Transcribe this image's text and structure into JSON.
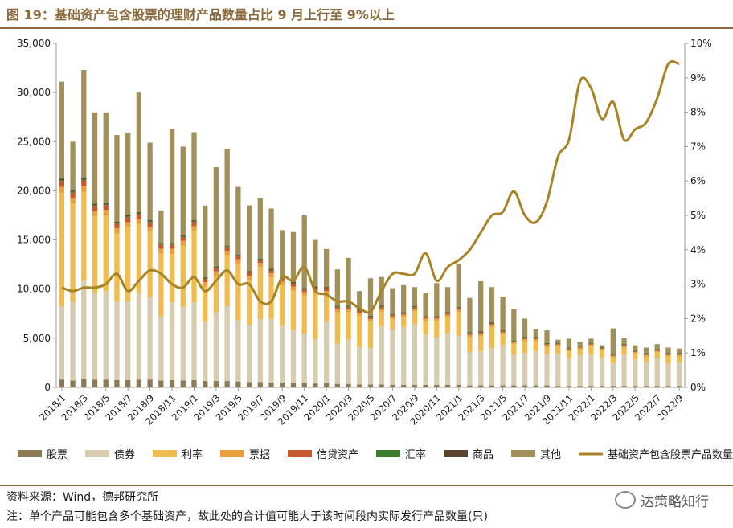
{
  "figure_title": "图 19：基础资产包含股票的理财产品数量占比 9 月上行至 9%以上",
  "source_note": "资料来源：Wind，德邦研究所",
  "footnote": "注：单个产品可能包含多个基础资产，故此处的合计值可能大于该时间段内实际发行产品数量(只)",
  "watermark": "达策略知行",
  "colors": {
    "股票": "#8c7a55",
    "债券": "#d6ccb0",
    "利率": "#f0bc4e",
    "票据": "#e89f3c",
    "信贷资产": "#c8592e",
    "汇率": "#3b7d2a",
    "商品": "#5a4630",
    "其他": "#a0915a",
    "line": "#a88427",
    "title": "#8b6a3c"
  },
  "chart_data": {
    "type": "bar",
    "stacked": true,
    "categories": [
      "2018/1",
      "2018/2",
      "2018/3",
      "2018/4",
      "2018/5",
      "2018/6",
      "2018/7",
      "2018/8",
      "2018/9",
      "2018/10",
      "2018/11",
      "2018/12",
      "2019/1",
      "2019/2",
      "2019/3",
      "2019/4",
      "2019/5",
      "2019/6",
      "2019/7",
      "2019/8",
      "2019/9",
      "2019/10",
      "2019/11",
      "2019/12",
      "2020/1",
      "2020/2",
      "2020/3",
      "2020/4",
      "2020/5",
      "2020/6",
      "2020/7",
      "2020/8",
      "2020/9",
      "2020/10",
      "2020/11",
      "2020/12",
      "2021/1",
      "2021/2",
      "2021/3",
      "2021/4",
      "2021/5",
      "2021/6",
      "2021/7",
      "2021/8",
      "2021/9",
      "2021/10",
      "2021/11",
      "2021/12",
      "2022/1",
      "2022/2",
      "2022/3",
      "2022/4",
      "2022/5",
      "2022/6",
      "2022/7",
      "2022/8",
      "2022/9"
    ],
    "x_tick_labels": [
      "2018/1",
      "2018/3",
      "2018/5",
      "2018/7",
      "2018/9",
      "2018/11",
      "2019/1",
      "2019/3",
      "2019/5",
      "2019/7",
      "2019/9",
      "2019/11",
      "2020/1",
      "2020/3",
      "2020/5",
      "2020/7",
      "2020/9",
      "2020/11",
      "2021/1",
      "2021/3",
      "2021/5",
      "2021/7",
      "2021/9",
      "2021/11",
      "2022/1",
      "2022/3",
      "2022/5",
      "2022/7",
      "2022/9"
    ],
    "series": [
      {
        "name": "股票",
        "values": [
          800,
          700,
          850,
          800,
          800,
          750,
          750,
          800,
          800,
          700,
          750,
          700,
          750,
          650,
          650,
          650,
          600,
          550,
          550,
          500,
          500,
          450,
          450,
          400,
          450,
          350,
          350,
          300,
          300,
          300,
          250,
          250,
          250,
          250,
          250,
          250,
          250,
          200,
          200,
          200,
          200,
          200,
          200,
          200,
          200,
          150,
          150,
          150,
          150,
          150,
          150,
          150,
          150,
          150,
          150,
          150,
          150
        ]
      },
      {
        "name": "债券",
        "values": [
          7500,
          8000,
          10000,
          8800,
          9000,
          8000,
          8000,
          8800,
          8400,
          6500,
          7900,
          7500,
          7900,
          6000,
          7000,
          7600,
          6200,
          5800,
          6400,
          6500,
          5800,
          5400,
          5000,
          4500,
          6200,
          4100,
          4500,
          3800,
          3700,
          5900,
          5600,
          5900,
          6200,
          5100,
          4800,
          5300,
          5000,
          3400,
          3500,
          3800,
          4100,
          3100,
          3300,
          3500,
          3200,
          3300,
          2800,
          3100,
          3200,
          2900,
          2300,
          3200,
          2700,
          2400,
          2800,
          2300,
          2400
        ]
      },
      {
        "name": "利率",
        "values": [
          11500,
          10000,
          9000,
          7800,
          7700,
          6900,
          7500,
          7000,
          6600,
          6400,
          4900,
          6200,
          7200,
          3600,
          3700,
          5200,
          5800,
          4600,
          5300,
          4200,
          4100,
          4000,
          3900,
          4600,
          2800,
          3200,
          2800,
          3200,
          2700,
          1500,
          1100,
          1000,
          1300,
          1400,
          1700,
          1600,
          2400,
          1500,
          1500,
          2100,
          1100,
          1100,
          1200,
          1000,
          700,
          700,
          700,
          600,
          800,
          700,
          600,
          700,
          600,
          600,
          600,
          700,
          600
        ]
      },
      {
        "name": "票据",
        "values": [
          600,
          600,
          600,
          550,
          550,
          550,
          550,
          550,
          550,
          500,
          550,
          500,
          550,
          450,
          450,
          450,
          450,
          400,
          400,
          400,
          400,
          400,
          350,
          350,
          350,
          300,
          300,
          300,
          250,
          250,
          250,
          250,
          250,
          250,
          250,
          250,
          250,
          250,
          250,
          250,
          200,
          200,
          200,
          200,
          200,
          200,
          200,
          200,
          200,
          150,
          150,
          150,
          150,
          150,
          150,
          150,
          150
        ]
      },
      {
        "name": "信贷资产",
        "values": [
          600,
          500,
          600,
          500,
          500,
          450,
          500,
          450,
          450,
          400,
          400,
          400,
          450,
          350,
          350,
          350,
          300,
          300,
          300,
          300,
          300,
          300,
          250,
          250,
          250,
          200,
          200,
          200,
          200,
          200,
          150,
          150,
          150,
          150,
          150,
          150,
          150,
          150,
          150,
          150,
          100,
          100,
          100,
          100,
          100,
          100,
          100,
          100,
          100,
          100,
          100,
          100,
          100,
          100,
          100,
          100,
          100
        ]
      },
      {
        "name": "汇率",
        "values": [
          100,
          100,
          100,
          100,
          100,
          100,
          100,
          100,
          100,
          80,
          80,
          80,
          80,
          80,
          80,
          80,
          80,
          80,
          80,
          80,
          80,
          80,
          80,
          80,
          80,
          80,
          80,
          80,
          80,
          80,
          60,
          60,
          60,
          60,
          60,
          60,
          60,
          60,
          60,
          60,
          60,
          60,
          60,
          60,
          60,
          60,
          60,
          60,
          60,
          60,
          60,
          60,
          60,
          60,
          60,
          60,
          60
        ]
      },
      {
        "name": "商品",
        "values": [
          150,
          130,
          150,
          130,
          130,
          120,
          120,
          120,
          120,
          100,
          100,
          100,
          100,
          90,
          90,
          90,
          90,
          90,
          80,
          80,
          80,
          80,
          80,
          80,
          80,
          80,
          70,
          70,
          70,
          70,
          60,
          60,
          60,
          60,
          60,
          60,
          60,
          60,
          60,
          60,
          50,
          50,
          50,
          50,
          50,
          50,
          50,
          50,
          50,
          50,
          50,
          50,
          50,
          50,
          50,
          50,
          50
        ]
      },
      {
        "name": "其他",
        "values": [
          9850,
          4970,
          11000,
          9300,
          9200,
          8800,
          8400,
          12180,
          7880,
          3320,
          11620,
          9020,
          8930,
          7280,
          10080,
          9840,
          6880,
          6700,
          6190,
          6140,
          4740,
          5090,
          7390,
          4740,
          3870,
          3690,
          4880,
          1850,
          3800,
          2930,
          2630,
          2730,
          1930,
          2330,
          3330,
          2530,
          4430,
          3480,
          5080,
          3580,
          3430,
          3190,
          1890,
          820,
          1290,
          290,
          890,
          400,
          400,
          190,
          2590,
          590,
          460,
          540,
          490,
          540,
          440
        ]
      }
    ],
    "line_series": {
      "name": "基础资产包含股票产品数量占比（右）",
      "axis": "right",
      "values": [
        2.9,
        2.8,
        2.9,
        2.9,
        3.0,
        3.3,
        2.8,
        3.1,
        3.4,
        3.3,
        3.0,
        2.9,
        3.2,
        2.8,
        3.1,
        3.4,
        3.0,
        3.0,
        2.5,
        2.5,
        3.2,
        3.1,
        3.5,
        2.8,
        2.7,
        2.5,
        2.5,
        2.3,
        2.2,
        2.8,
        3.3,
        3.3,
        3.3,
        3.9,
        3.1,
        3.5,
        3.7,
        4.0,
        4.5,
        5.0,
        5.1,
        5.7,
        5.0,
        4.8,
        5.4,
        6.7,
        7.2,
        8.9,
        8.7,
        7.8,
        8.3,
        7.2,
        7.5,
        7.7,
        8.4,
        9.4,
        9.4
      ]
    },
    "y_left": {
      "min": 0,
      "max": 35000,
      "ticks": [
        "0",
        "5,000",
        "10,000",
        "15,000",
        "20,000",
        "25,000",
        "30,000",
        "35,000"
      ]
    },
    "y_right": {
      "min": 0,
      "max": 10,
      "ticks": [
        "0%",
        "1%",
        "2%",
        "3%",
        "4%",
        "5%",
        "6%",
        "7%",
        "8%",
        "9%",
        "10%"
      ]
    },
    "legend": [
      "股票",
      "债券",
      "利率",
      "票据",
      "信贷资产",
      "汇率",
      "商品",
      "其他",
      "基础资产包含股票产品数量占比（右）"
    ],
    "legend_position": "bottom"
  }
}
